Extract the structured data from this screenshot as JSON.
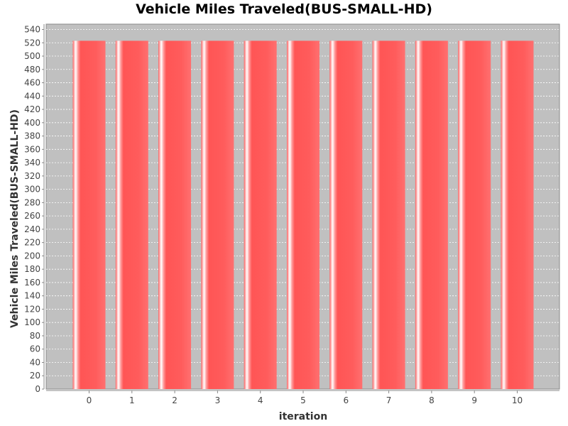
{
  "chart_data": {
    "type": "bar",
    "title": "Vehicle Miles Traveled(BUS-SMALL-HD)",
    "xlabel": "iteration",
    "ylabel": "Vehicle Miles Traveled(BUS-SMALL-HD)",
    "categories": [
      "0",
      "1",
      "2",
      "3",
      "4",
      "5",
      "6",
      "7",
      "8",
      "9",
      "10"
    ],
    "values": [
      523,
      523,
      523,
      523,
      523,
      523,
      523,
      523,
      523,
      523,
      523
    ],
    "ylim": [
      0,
      548
    ],
    "yticks": [
      0,
      20,
      40,
      60,
      80,
      100,
      120,
      140,
      160,
      180,
      200,
      220,
      240,
      260,
      280,
      300,
      320,
      340,
      360,
      380,
      400,
      420,
      440,
      460,
      480,
      500,
      520,
      540
    ],
    "grid": true,
    "legend": "none",
    "colors": {
      "bar": "#ff5555",
      "plot_background": "#c0c0c0",
      "gridline": "#ffffff"
    }
  }
}
